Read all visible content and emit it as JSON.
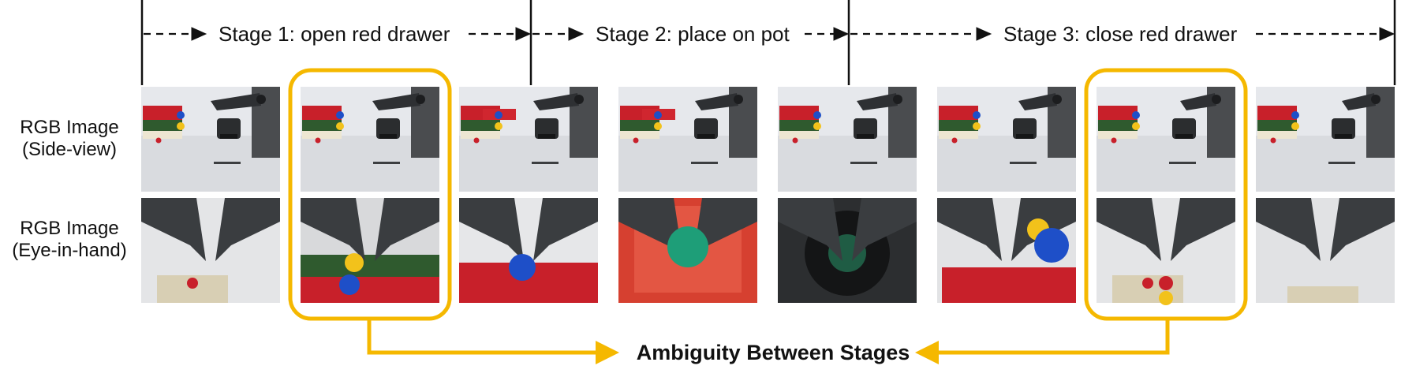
{
  "stages": [
    {
      "label": "Stage 1: open red drawer"
    },
    {
      "label": "Stage 2: place on pot"
    },
    {
      "label": "Stage 3: close red drawer"
    }
  ],
  "rows": [
    {
      "line1": "RGB Image",
      "line2": "(Side-view)"
    },
    {
      "line1": "RGB Image",
      "line2": "(Eye-in-hand)"
    }
  ],
  "caption": "Ambiguity Between Stages",
  "colors": {
    "highlight": "#F5B800",
    "drawer_red": "#C8202A",
    "ball_blue": "#1E4FC8",
    "ball_yellow": "#F2C21B",
    "ball_green": "#1E9E78",
    "gripper": "#3A3D40",
    "wall": "#E6E8EC",
    "table": "#D9DBDF"
  }
}
